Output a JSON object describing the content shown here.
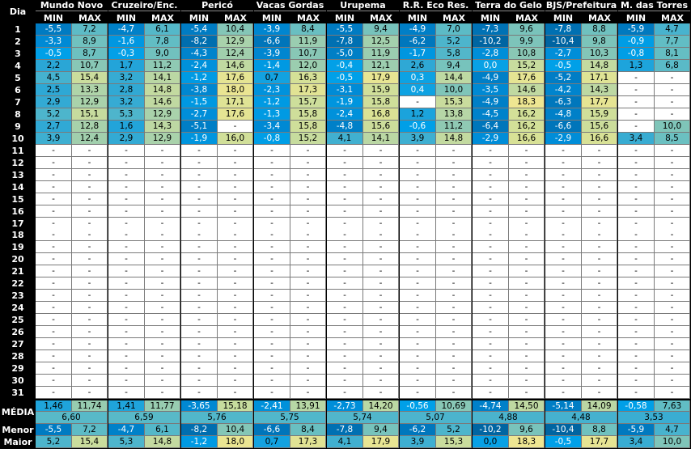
{
  "header": {
    "dia_label": "Dia",
    "min_label": "MIN",
    "max_label": "MAX"
  },
  "days": [
    "1",
    "2",
    "3",
    "4",
    "5",
    "6",
    "7",
    "8",
    "9",
    "10",
    "11",
    "12",
    "13",
    "14",
    "15",
    "16",
    "17",
    "18",
    "19",
    "20",
    "21",
    "22",
    "23",
    "24",
    "25",
    "26",
    "27",
    "28",
    "29",
    "30",
    "31"
  ],
  "empty_symbol": "-",
  "summary_labels": {
    "media": "MÉDIA",
    "menor": "Menor",
    "maior": "Maior"
  },
  "stations": [
    {
      "name": "Mundo Novo",
      "min": [
        "-5,5",
        "-3,3",
        "-0,5",
        "2,2",
        "4,5",
        "2,5",
        "2,9",
        "5,2",
        "2,7",
        "3,9"
      ],
      "max": [
        "7,2",
        "8,9",
        "8,7",
        "10,7",
        "15,4",
        "13,3",
        "12,9",
        "15,1",
        "12,8",
        "12,4"
      ],
      "media_min": "1,46",
      "media_max": "11,74",
      "media": "6,60",
      "menor_min": "-5,5",
      "menor_max": "7,2",
      "maior_min": "5,2",
      "maior_max": "15,4"
    },
    {
      "name": "Cruzeiro/Enc.",
      "min": [
        "-4,7",
        "-1,6",
        "-0,3",
        "1,7",
        "3,2",
        "2,8",
        "3,2",
        "5,3",
        "1,6",
        "2,9"
      ],
      "max": [
        "6,1",
        "7,8",
        "9,0",
        "11,2",
        "14,1",
        "14,8",
        "14,6",
        "12,9",
        "14,3",
        "12,9"
      ],
      "media_min": "1,41",
      "media_max": "11,77",
      "media": "6,59",
      "menor_min": "-4,7",
      "menor_max": "6,1",
      "maior_min": "5,3",
      "maior_max": "14,8"
    },
    {
      "name": "Pericó",
      "min": [
        "-5,4",
        "-8,2",
        "-4,3",
        "-2,4",
        "-1,2",
        "-3,8",
        "-1,5",
        "-2,7",
        "-5,1",
        "-1,9"
      ],
      "max": [
        "10,4",
        "12,9",
        "12,4",
        "14,6",
        "17,6",
        "18,0",
        "17,1",
        "17,6",
        null,
        "16,0"
      ],
      "media_min": "-3,65",
      "media_max": "15,18",
      "media": "5,76",
      "menor_min": "-8,2",
      "menor_max": "10,4",
      "maior_min": "-1,2",
      "maior_max": "18,0"
    },
    {
      "name": "Vacas Gordas",
      "min": [
        "-3,9",
        "-6,6",
        "-3,9",
        "-1,4",
        "0,7",
        "-2,3",
        "-1,2",
        "-1,3",
        "-3,4",
        "-0,8"
      ],
      "max": [
        "8,4",
        "11,9",
        "10,7",
        "12,0",
        "16,3",
        "17,3",
        "15,7",
        "15,8",
        "15,8",
        "15,2"
      ],
      "media_min": "-2,41",
      "media_max": "13,91",
      "media": "5,75",
      "menor_min": "-6,6",
      "menor_max": "8,4",
      "maior_min": "0,7",
      "maior_max": "17,3"
    },
    {
      "name": "Urupema",
      "min": [
        "-5,5",
        "-7,8",
        "-5,0",
        "-0,4",
        "-0,5",
        "-3,1",
        "-1,9",
        "-2,4",
        "-4,8",
        "4,1"
      ],
      "max": [
        "9,4",
        "12,5",
        "11,9",
        "12,1",
        "17,9",
        "15,9",
        "15,8",
        "16,8",
        "15,6",
        "14,1"
      ],
      "media_min": "-2,73",
      "media_max": "14,20",
      "media": "5,74",
      "menor_min": "-7,8",
      "menor_max": "9,4",
      "maior_min": "4,1",
      "maior_max": "17,9"
    },
    {
      "name": "R.R. Eco Res.",
      "min": [
        "-4,9",
        "-6,2",
        "-1,7",
        "2,6",
        "0,3",
        "0,4",
        null,
        "1,2",
        "-0,6",
        "3,9"
      ],
      "max": [
        "7,0",
        "5,2",
        "5,8",
        "9,4",
        "14,4",
        "10,0",
        "15,3",
        "13,8",
        "11,2",
        "14,8"
      ],
      "media_min": "-0,56",
      "media_max": "10,69",
      "media": "5,07",
      "menor_min": "-6,2",
      "menor_max": "5,2",
      "maior_min": "3,9",
      "maior_max": "15,3"
    },
    {
      "name": "Terra do Gelo",
      "min": [
        "-7,3",
        "-10,2",
        "-2,8",
        "0,0",
        "-4,9",
        "-3,5",
        "-4,9",
        "-4,5",
        "-6,4",
        "-2,9"
      ],
      "max": [
        "9,6",
        "9,9",
        "10,8",
        "15,2",
        "17,6",
        "14,6",
        "18,3",
        "16,2",
        "16,2",
        "16,6"
      ],
      "media_min": "-4,74",
      "media_max": "14,50",
      "media": "4,88",
      "menor_min": "-10,2",
      "menor_max": "9,6",
      "maior_min": "0,0",
      "maior_max": "18,3"
    },
    {
      "name": "BJS/Prefeitura",
      "min": [
        "-7,8",
        "-10,4",
        "-2,7",
        "-0,5",
        "-5,2",
        "-4,2",
        "-6,3",
        "-4,8",
        "-6,6",
        "-2,9"
      ],
      "max": [
        "8,8",
        "9,8",
        "10,3",
        "14,8",
        "17,1",
        "14,3",
        "17,7",
        "15,9",
        "15,6",
        "16,6"
      ],
      "media_min": "-5,14",
      "media_max": "14,09",
      "media": "4,48",
      "menor_min": "-10,4",
      "menor_max": "8,8",
      "maior_min": "-0,5",
      "maior_max": "17,7"
    },
    {
      "name": "M. das Torres",
      "min": [
        "-5,9",
        "-0,9",
        "-0,8",
        "1,3",
        null,
        null,
        null,
        null,
        null,
        "3,4"
      ],
      "max": [
        "4,7",
        "7,7",
        "8,1",
        "6,8",
        null,
        null,
        null,
        null,
        "10,0",
        "8,5"
      ],
      "media_min": "-0,58",
      "media_max": "7,63",
      "media": "3,53",
      "menor_min": "-5,9",
      "menor_max": "4,7",
      "maior_min": "3,4",
      "maior_max": "10,0"
    }
  ]
}
